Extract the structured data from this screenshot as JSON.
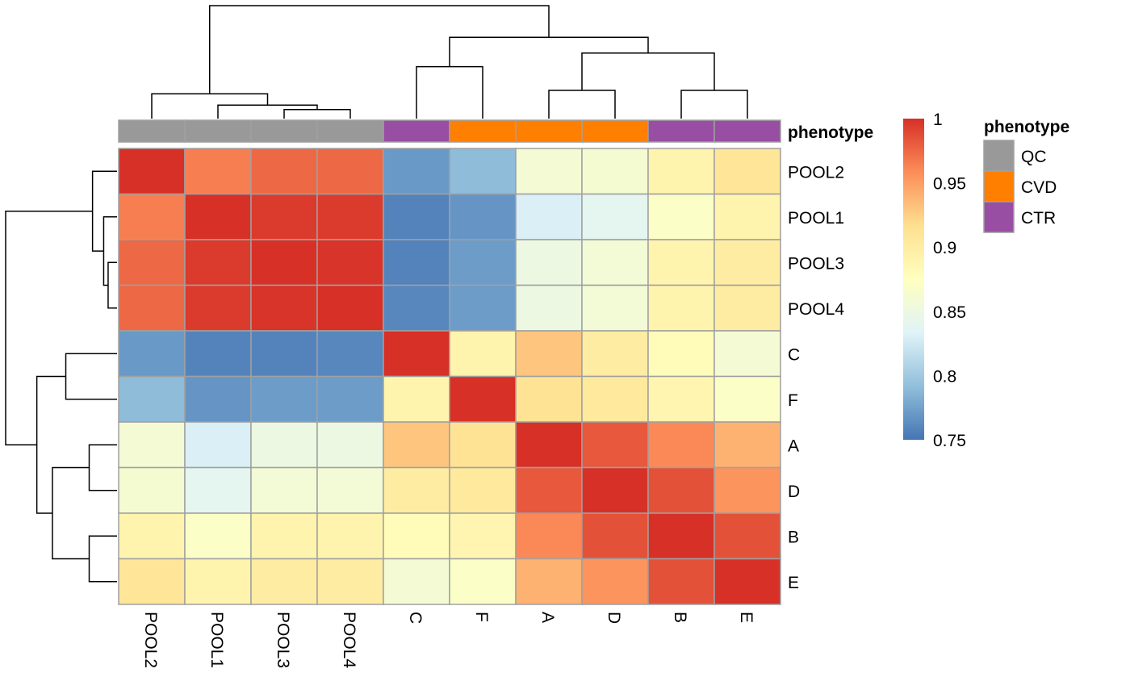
{
  "chart_data": {
    "type": "heatmap",
    "title": "",
    "columns": [
      "POOL2",
      "POOL1",
      "POOL3",
      "POOL4",
      "C",
      "F",
      "A",
      "D",
      "B",
      "E"
    ],
    "rows": [
      "POOL2",
      "POOL1",
      "POOL3",
      "POOL4",
      "C",
      "F",
      "A",
      "D",
      "B",
      "E"
    ],
    "values": [
      [
        1.0,
        0.965,
        0.975,
        0.975,
        0.77,
        0.79,
        0.86,
        0.862,
        0.89,
        0.91
      ],
      [
        0.965,
        1.0,
        0.995,
        0.995,
        0.758,
        0.768,
        0.83,
        0.84,
        0.87,
        0.89
      ],
      [
        0.975,
        0.995,
        1.0,
        0.998,
        0.758,
        0.772,
        0.85,
        0.858,
        0.89,
        0.9
      ],
      [
        0.975,
        0.995,
        0.998,
        1.0,
        0.76,
        0.772,
        0.85,
        0.858,
        0.89,
        0.9
      ],
      [
        0.77,
        0.758,
        0.758,
        0.76,
        1.0,
        0.89,
        0.93,
        0.9,
        0.88,
        0.86
      ],
      [
        0.79,
        0.768,
        0.772,
        0.772,
        0.89,
        1.0,
        0.912,
        0.905,
        0.888,
        0.87
      ],
      [
        0.86,
        0.83,
        0.85,
        0.85,
        0.93,
        0.912,
        1.0,
        0.982,
        0.96,
        0.94
      ],
      [
        0.862,
        0.84,
        0.858,
        0.858,
        0.9,
        0.905,
        0.982,
        1.0,
        0.985,
        0.955
      ],
      [
        0.89,
        0.87,
        0.89,
        0.89,
        0.88,
        0.888,
        0.96,
        0.985,
        1.0,
        0.985
      ],
      [
        0.91,
        0.89,
        0.9,
        0.9,
        0.86,
        0.87,
        0.94,
        0.955,
        0.985,
        1.0
      ]
    ],
    "color_scale": {
      "min": 0.75,
      "max": 1,
      "ticks": [
        "1",
        "0.95",
        "0.9",
        "0.85",
        "0.8",
        "0.75"
      ],
      "palette": [
        "#4575b4",
        "#91bfdb",
        "#e0f3f8",
        "#ffffbf",
        "#fee090",
        "#fc8d59",
        "#d73027"
      ]
    },
    "annotation": {
      "name": "phenotype",
      "column_groups": [
        "QC",
        "QC",
        "QC",
        "QC",
        "CTR",
        "CVD",
        "CVD",
        "CVD",
        "CTR",
        "CTR"
      ],
      "legend": [
        {
          "label": "QC",
          "color": "#999999"
        },
        {
          "label": "CVD",
          "color": "#ff7f00"
        },
        {
          "label": "CTR",
          "color": "#984ea3"
        }
      ]
    },
    "column_dendrogram_order": [
      "POOL2",
      "POOL1",
      "POOL3",
      "POOL4",
      "C",
      "F",
      "A",
      "D",
      "B",
      "E"
    ],
    "row_dendrogram_order": [
      "POOL2",
      "POOL1",
      "POOL3",
      "POOL4",
      "C",
      "F",
      "A",
      "D",
      "B",
      "E"
    ],
    "grid": true,
    "legend_position": "right"
  }
}
